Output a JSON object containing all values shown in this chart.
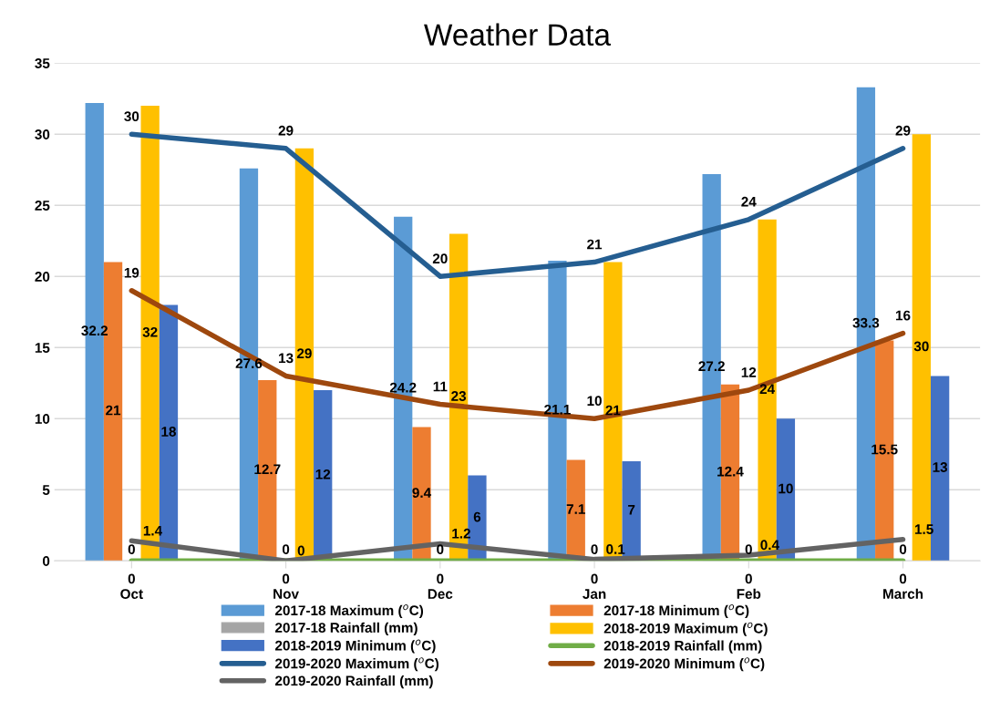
{
  "chart_data": {
    "type": "bar",
    "title": "Weather Data",
    "categories": [
      "Oct",
      "Nov",
      "Dec",
      "Jan",
      "Feb",
      "March"
    ],
    "ylim": [
      0,
      35
    ],
    "yticks": [
      0,
      5,
      10,
      15,
      20,
      25,
      30,
      35
    ],
    "grid": "y",
    "legend": "bottom",
    "data_labels": true,
    "series": [
      {
        "name": "2017-18 Maximum ($^{o}$C)",
        "color": "#5b9bd5",
        "values": [
          32.2,
          27.6,
          24.2,
          21.1,
          27.2,
          33.3
        ]
      },
      {
        "name": "2017-18 Minimum ($^{o}$C)",
        "color": "#ed7d31",
        "values": [
          21,
          12.7,
          9.4,
          7.1,
          12.4,
          15.5
        ]
      },
      {
        "name": "2017-18 Rainfall (mm)",
        "color": "#a5a5a5",
        "values": [
          0,
          0,
          0,
          0,
          0,
          0
        ]
      },
      {
        "name": "2018-2019 Maximum ($^{o}$C)",
        "color": "#ffc000",
        "values": [
          32,
          29,
          23,
          21,
          24,
          30
        ]
      },
      {
        "name": "2018-2019 Minimum ($^{o}$C)",
        "color": "#4472c4",
        "values": [
          18,
          12,
          6,
          7,
          10,
          13
        ]
      },
      {
        "name": "2018-2019 Rainfall (mm)",
        "type": "line",
        "color": "#70ad47",
        "values": [
          0,
          0,
          0,
          0,
          0,
          0
        ]
      },
      {
        "name": "2019-2020 Maximum ($^{o}$C)",
        "type": "line",
        "color": "#255e91",
        "values": [
          30,
          29,
          20,
          21,
          24,
          29
        ]
      },
      {
        "name": "2019-2020 Minimum ($^{o}$C)",
        "type": "line",
        "color": "#9e480e",
        "values": [
          19,
          13,
          11,
          10,
          12,
          16
        ]
      },
      {
        "name": "2019-2020 Rainfall (mm)",
        "type": "line",
        "color": "#636363",
        "values": [
          1.4,
          0,
          1.2,
          0.1,
          0.4,
          1.5
        ]
      }
    ]
  }
}
